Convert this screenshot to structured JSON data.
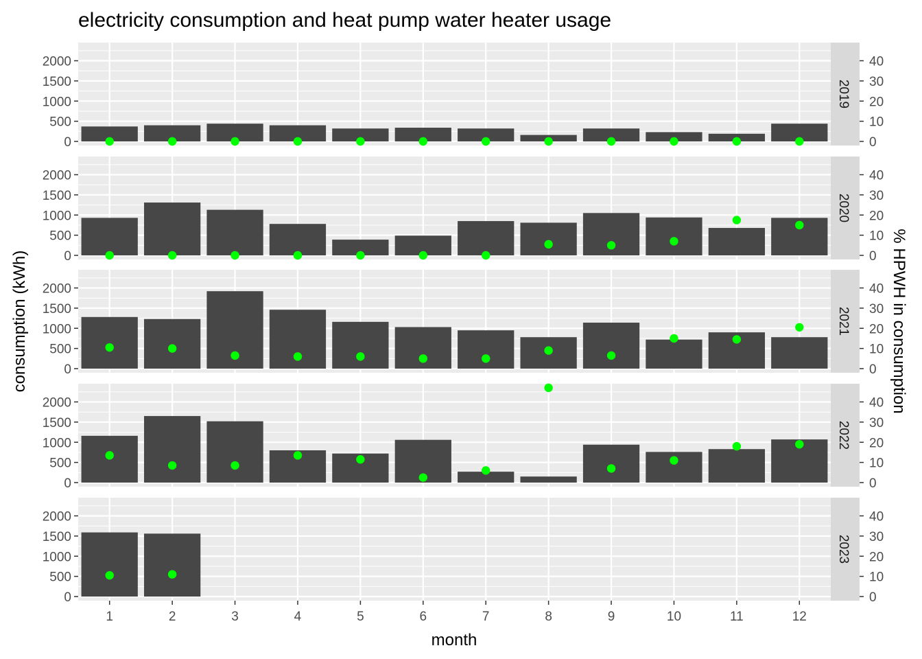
{
  "chart_data": {
    "type": "bar",
    "title": "electricity consumption and heat pump water heater usage",
    "xlabel": "month",
    "ylabel": "consumption (kWh)",
    "y2label": "% HPWH in consumption",
    "ylim": [
      0,
      2400
    ],
    "y2lim": [
      0,
      48
    ],
    "yticks": [
      0,
      500,
      1000,
      1500,
      2000
    ],
    "y2ticks": [
      0,
      10,
      20,
      30,
      40
    ],
    "x": [
      1,
      2,
      3,
      4,
      5,
      6,
      7,
      8,
      9,
      10,
      11,
      12
    ],
    "bar_color": "#474747",
    "point_color": "#00ff00",
    "panel_background": "#ebebeb",
    "strip_background": "#d9d9d9",
    "grid": true,
    "facets": [
      {
        "label": "2019",
        "consumption": [
          370,
          400,
          440,
          400,
          320,
          340,
          320,
          160,
          320,
          230,
          190,
          440
        ],
        "hpwh_pct": [
          0,
          0,
          0,
          0,
          0,
          0,
          0,
          0,
          0,
          0,
          0,
          0
        ]
      },
      {
        "label": "2020",
        "consumption": [
          930,
          1310,
          1130,
          780,
          390,
          490,
          850,
          810,
          1050,
          940,
          680,
          930
        ],
        "hpwh_pct": [
          0,
          0,
          0,
          0,
          0,
          0,
          0,
          5.5,
          5.0,
          7.0,
          17.5,
          15.0
        ]
      },
      {
        "label": "2021",
        "consumption": [
          1280,
          1230,
          1920,
          1460,
          1160,
          1030,
          950,
          780,
          1140,
          720,
          900,
          780
        ],
        "hpwh_pct": [
          10.5,
          10.0,
          6.5,
          6.0,
          6.0,
          5.0,
          5.0,
          9.0,
          6.5,
          15.0,
          14.5,
          20.5
        ]
      },
      {
        "label": "2022",
        "consumption": [
          1160,
          1650,
          1520,
          800,
          720,
          1060,
          270,
          150,
          940,
          760,
          830,
          1070
        ],
        "hpwh_pct": [
          13.5,
          8.5,
          8.5,
          13.5,
          11.5,
          2.5,
          6.0,
          47.0,
          7.0,
          11.0,
          18.0,
          19.0
        ]
      },
      {
        "label": "2023",
        "consumption": [
          1590,
          1560,
          null,
          null,
          null,
          null,
          null,
          null,
          null,
          null,
          null,
          null
        ],
        "hpwh_pct": [
          10.5,
          11.0,
          null,
          null,
          null,
          null,
          null,
          null,
          null,
          null,
          null,
          null
        ]
      }
    ]
  }
}
